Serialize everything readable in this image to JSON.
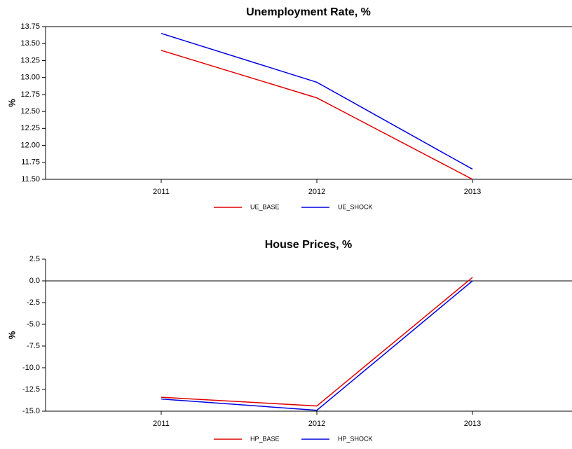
{
  "chart_data": [
    {
      "type": "line",
      "title": "Unemployment Rate, %",
      "y_label": "%",
      "categories": [
        "2011",
        "2012",
        "2013"
      ],
      "series": [
        {
          "name": "UE_BASE",
          "color": "#e00000",
          "values": [
            13.4,
            12.7,
            11.5
          ]
        },
        {
          "name": "UE_SHOCK",
          "color": "#0000e0",
          "values": [
            13.65,
            12.93,
            11.65
          ]
        }
      ],
      "ylim": [
        11.5,
        13.75
      ],
      "yticks": [
        {
          "value": 11.5,
          "label": "11.50"
        },
        11.75,
        {
          "value": 12,
          "label": "12.00"
        },
        12.25,
        {
          "value": 12.5,
          "label": "12.50"
        },
        12.75,
        {
          "value": 13,
          "label": "13.00"
        },
        13.25,
        {
          "value": 13.5,
          "label": "13.50"
        },
        13.75
      ],
      "legend": "bottom"
    },
    {
      "type": "line",
      "title": "House Prices, %",
      "y_label": "%",
      "categories": [
        "2011",
        "2012",
        "2013"
      ],
      "series": [
        {
          "name": "HP_BASE",
          "color": "#e00000",
          "values": [
            -13.4,
            -14.4,
            0.4
          ]
        },
        {
          "name": "HP_SHOCK",
          "color": "#0000e0",
          "values": [
            -13.6,
            -14.9,
            0.0
          ]
        }
      ],
      "ylim": [
        -15,
        2.5
      ],
      "yticks": [
        {
          "value": -15,
          "label": "-15.0"
        },
        -12.5,
        {
          "value": -10,
          "label": "-10.0"
        },
        -7.5,
        {
          "value": -5,
          "label": "-5.0"
        },
        -2.5,
        {
          "value": 0,
          "label": "0.0"
        },
        2.5
      ],
      "legend": "bottom"
    }
  ]
}
